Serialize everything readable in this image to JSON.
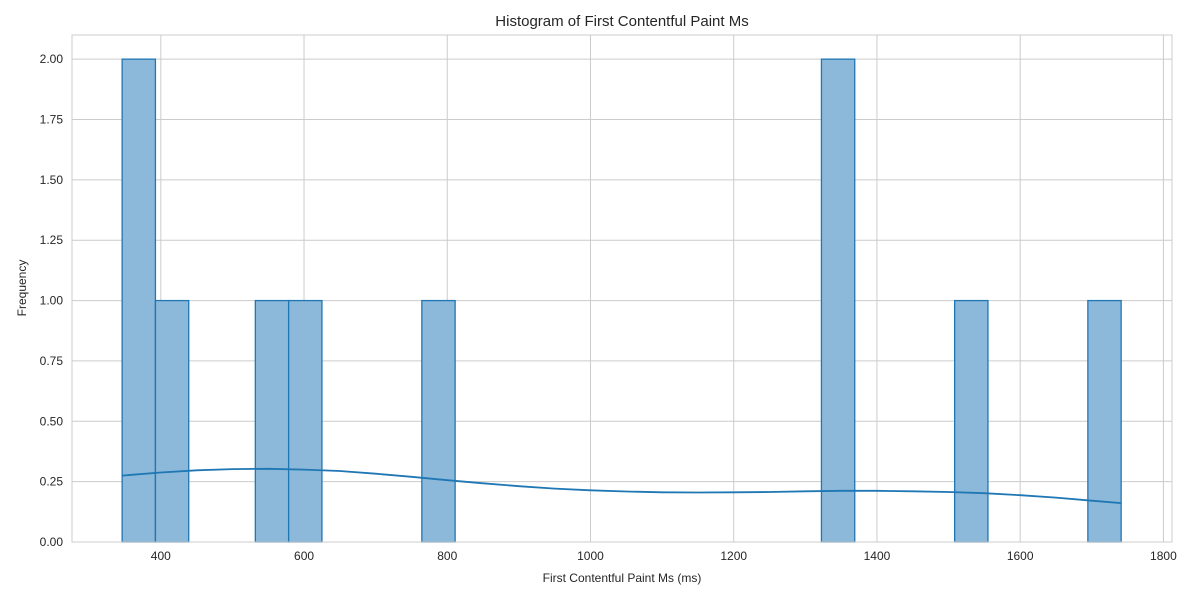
{
  "chart_data": {
    "type": "bar",
    "title": "Histogram of First Contentful Paint Ms",
    "xlabel": "First Contentful Paint Ms (ms)",
    "ylabel": "Frequency",
    "xlim": [
      276,
      1812
    ],
    "ylim": [
      0,
      2.1
    ],
    "xticks": [
      400,
      600,
      800,
      1000,
      1200,
      1400,
      1600,
      1800
    ],
    "yticks": [
      0.0,
      0.25,
      0.5,
      0.75,
      1.0,
      1.25,
      1.5,
      1.75,
      2.0
    ],
    "xtick_labels": [
      "400",
      "600",
      "800",
      "1000",
      "1200",
      "1400",
      "1600",
      "1800"
    ],
    "ytick_labels": [
      "0.00",
      "0.25",
      "0.50",
      "0.75",
      "1.00",
      "1.25",
      "1.50",
      "1.75",
      "2.00"
    ],
    "bin_edges": [
      346,
      392.5,
      439,
      485.5,
      532,
      578.5,
      625,
      671.5,
      718,
      764.5,
      811,
      857.5,
      904,
      950.5,
      997,
      1043.5,
      1090,
      1136.5,
      1183,
      1229.5,
      1276,
      1322.5,
      1369,
      1415.5,
      1462,
      1508.5,
      1555,
      1601.5,
      1648,
      1694.5,
      1741
    ],
    "counts": [
      2,
      1,
      0,
      0,
      1,
      1,
      0,
      0,
      0,
      1,
      0,
      0,
      0,
      0,
      0,
      0,
      0,
      0,
      0,
      0,
      0,
      2,
      0,
      0,
      0,
      1,
      0,
      0,
      0,
      1
    ],
    "kde": {
      "x": [
        346,
        400,
        450,
        500,
        550,
        600,
        650,
        700,
        750,
        800,
        850,
        900,
        950,
        1000,
        1050,
        1100,
        1150,
        1200,
        1250,
        1300,
        1350,
        1400,
        1450,
        1500,
        1550,
        1600,
        1650,
        1700,
        1741
      ],
      "y": [
        0.275,
        0.288,
        0.297,
        0.302,
        0.303,
        0.3,
        0.294,
        0.283,
        0.27,
        0.256,
        0.243,
        0.231,
        0.221,
        0.214,
        0.209,
        0.206,
        0.205,
        0.206,
        0.207,
        0.21,
        0.212,
        0.212,
        0.21,
        0.207,
        0.202,
        0.194,
        0.184,
        0.171,
        0.161
      ]
    },
    "colors": {
      "bar_fill": "#8cb8d9",
      "bar_edge": "#1f77b4",
      "kde": "#1f77b4"
    },
    "grid": true,
    "legend": "none"
  }
}
